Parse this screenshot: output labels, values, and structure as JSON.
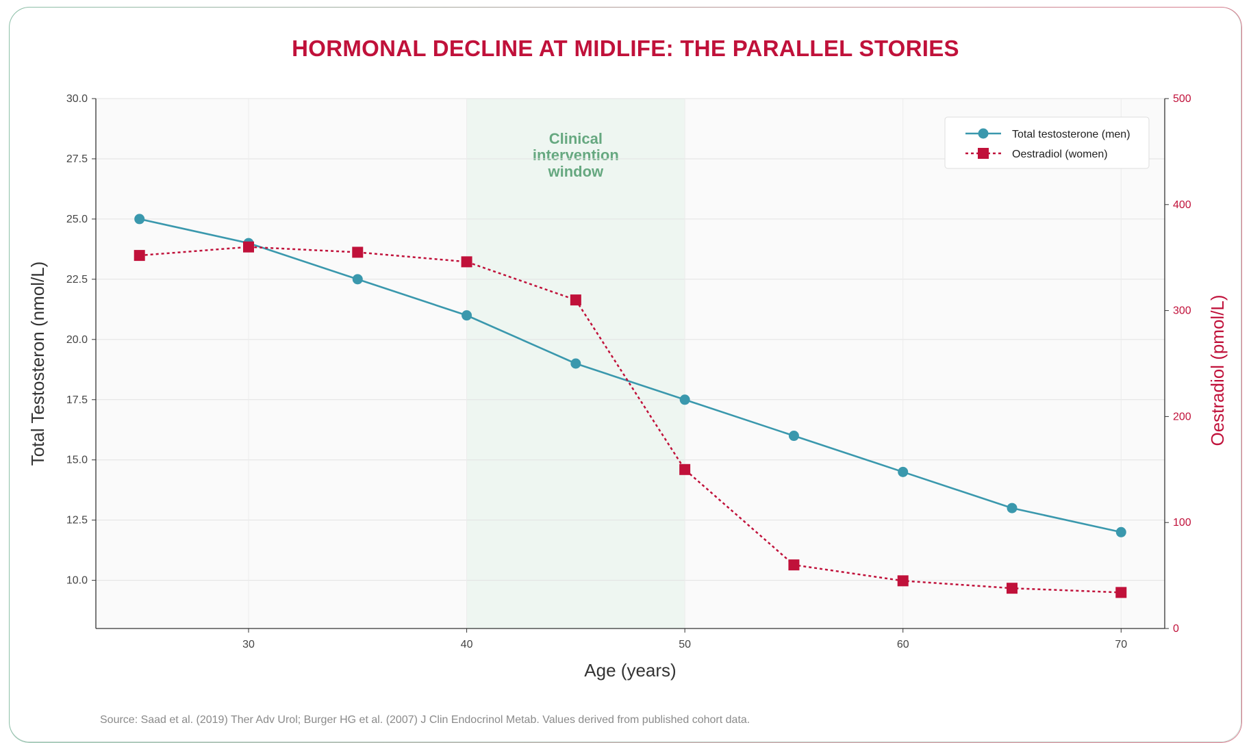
{
  "chart_data": {
    "type": "line",
    "title": "HORMONAL DECLINE AT MIDLIFE: THE PARALLEL STORIES",
    "xlabel": "Age (years)",
    "ylabel": "Total Testosteron (nmol/L)",
    "ylabel_right": "Oestradiol (pmol/L)",
    "xlim": [
      23,
      72
    ],
    "ylim": [
      8,
      30
    ],
    "ylim_right": [
      0,
      500
    ],
    "x_ticks": [
      30,
      40,
      50,
      60,
      70
    ],
    "y_ticks": [
      10.0,
      12.5,
      15.0,
      17.5,
      20.0,
      22.5,
      25.0,
      27.5,
      30.0
    ],
    "y_ticks_right": [
      0,
      100,
      200,
      300,
      400,
      500
    ],
    "grid": true,
    "legend_position": "top-right",
    "series": [
      {
        "name": "Total testosterone (men)",
        "axis": "left",
        "color": "#3a98ad",
        "marker": "circle",
        "line_style": "solid",
        "x": [
          25,
          30,
          35,
          40,
          45,
          50,
          55,
          60,
          65,
          70
        ],
        "values": [
          25.0,
          24.0,
          22.5,
          21.0,
          19.0,
          17.5,
          16.0,
          14.5,
          13.0,
          12.0
        ]
      },
      {
        "name": "Oestradiol (women)",
        "axis": "right",
        "color": "#c0113a",
        "marker": "square",
        "line_style": "dotted",
        "x": [
          25,
          30,
          35,
          40,
          45,
          50,
          55,
          60,
          65,
          70
        ],
        "values": [
          352,
          360,
          355,
          346,
          310,
          150,
          60,
          45,
          38,
          34
        ]
      }
    ],
    "annotations": [
      {
        "type": "shaded-region",
        "x_start": 40,
        "x_end": 50,
        "color": "#eef6f1",
        "label_lines": [
          "Clinical",
          "intervention",
          "window"
        ]
      }
    ],
    "source": "Source: Saad et al. (2019) Ther Adv Urol; Burger HG et al. (2007) J Clin Endocrinol Metab. Values derived from published cohort data."
  }
}
